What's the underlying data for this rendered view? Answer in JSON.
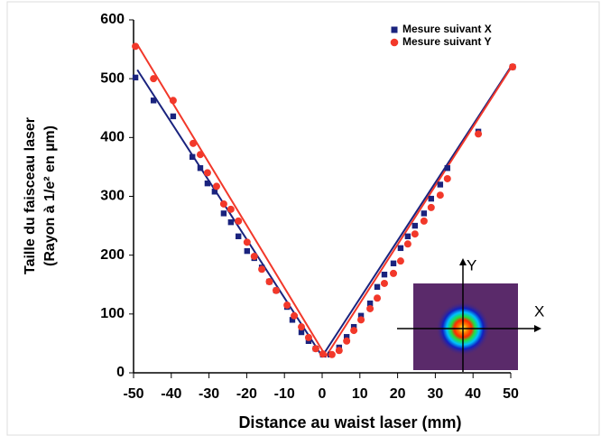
{
  "chart_data": {
    "type": "scatter",
    "xlabel": "Distance au waist laser (mm)",
    "ylabel": [
      "Taille du faisceau laser",
      "(Rayon à 1/e² en µm)"
    ],
    "xlim": [
      -50,
      50
    ],
    "xticks": [
      -50,
      -40,
      -30,
      -20,
      -10,
      0,
      10,
      20,
      30,
      40,
      50
    ],
    "ylim": [
      0,
      600
    ],
    "yticks": [
      0,
      100,
      200,
      300,
      400,
      500,
      600
    ],
    "legend": "top-right",
    "inset_labels": {
      "x": "X",
      "y": "Y"
    },
    "series": [
      {
        "name": "Mesure suivant X",
        "color": "#1a237e",
        "marker": "square",
        "x": [
          -49.5,
          -44.7,
          -39.5,
          -34.4,
          -32.3,
          -30.4,
          -28.5,
          -26.1,
          -24.2,
          -22.2,
          -19.9,
          -18,
          -16,
          -14,
          -12.2,
          -9.3,
          -7.9,
          -5.5,
          -3.6,
          -1.7,
          0.2,
          2.2,
          4.5,
          6.5,
          8.4,
          10.3,
          12.7,
          14.6,
          16.5,
          18.9,
          20.8,
          22.7,
          24.6,
          27,
          28.9,
          31.3,
          33.2,
          41.4,
          50.5
        ],
        "values": [
          502,
          463,
          436,
          367,
          348,
          322,
          308,
          271,
          256,
          232,
          207,
          195,
          179,
          155,
          140,
          112,
          90,
          69,
          54,
          41,
          31,
          31,
          43,
          61,
          78,
          97,
          118,
          146,
          167,
          186,
          212,
          232,
          250,
          271,
          296,
          320,
          348,
          410,
          520
        ]
      },
      {
        "name": "Mesure suivant Y",
        "color": "#f2382a",
        "marker": "circle",
        "x": [
          -49.5,
          -44.7,
          -39.5,
          -34.2,
          -32.3,
          -30.4,
          -28,
          -26.1,
          -24.2,
          -22.2,
          -19.9,
          -18,
          -16,
          -14,
          -12.2,
          -9.3,
          -7.4,
          -5.5,
          -3.6,
          -1.7,
          0.2,
          2.6,
          4.5,
          6.5,
          8.4,
          10.3,
          12.7,
          14.6,
          16.5,
          18.9,
          20.8,
          22.7,
          24.6,
          27,
          28.9,
          31.3,
          33.2,
          41.4,
          50.5
        ],
        "values": [
          555,
          500,
          463,
          390,
          371,
          340,
          317,
          287,
          278,
          258,
          222,
          198,
          176,
          155,
          140,
          115,
          97,
          78,
          60,
          41,
          32,
          31,
          38,
          54,
          72,
          90,
          109,
          127,
          152,
          169,
          190,
          219,
          236,
          258,
          281,
          302,
          330,
          406,
          520
        ]
      }
    ],
    "fit_lines": [
      {
        "color": "#1a237e",
        "x": [
          -49,
          0,
          50
        ],
        "values": [
          515,
          28,
          520
        ]
      },
      {
        "color": "#f2382a",
        "x": [
          -49,
          1,
          50
        ],
        "values": [
          558,
          28,
          518
        ]
      }
    ]
  }
}
